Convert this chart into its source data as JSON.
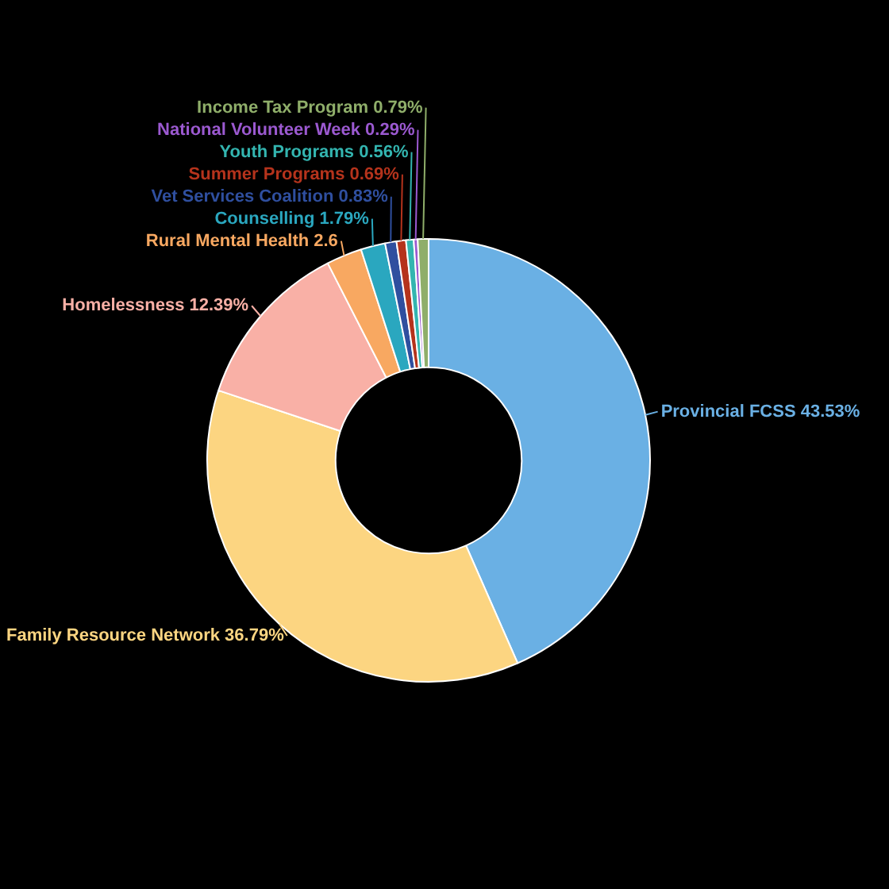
{
  "chart_data": {
    "type": "donut",
    "categories": [
      "Provincial FCSS",
      "Family Resource Network",
      "Homelessness",
      "Rural Mental Health",
      "Counselling",
      "Vet Services Coalition",
      "Summer Programs",
      "Youth Programs",
      "National Volunteer Week",
      "Income Tax Program"
    ],
    "values": [
      43.53,
      36.79,
      12.39,
      2.6,
      1.79,
      0.83,
      0.69,
      0.56,
      0.29,
      0.79
    ],
    "value_labels": [
      "43.53%",
      "36.79%",
      "12.39%",
      "2.6",
      "1.79%",
      "0.83%",
      "0.69%",
      "0.56%",
      "0.29%",
      "0.79%"
    ],
    "colors": [
      "#6ab0e4",
      "#fcd581",
      "#f9b0a6",
      "#f8a861",
      "#2aa7bf",
      "#2f4f9f",
      "#b5331c",
      "#33b5b0",
      "#9b59d0",
      "#8fae6a"
    ],
    "legend": false
  }
}
